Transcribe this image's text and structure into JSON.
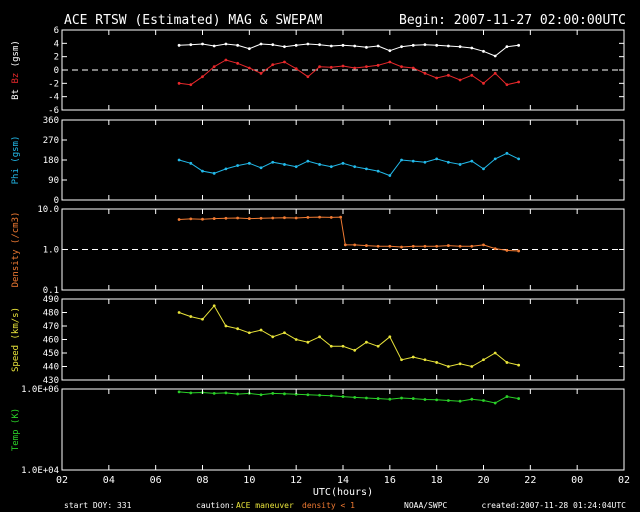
{
  "header": {
    "title": "ACE RTSW (Estimated) MAG & SWEPAM",
    "begin": "Begin: 2007-11-27 02:00:00UTC"
  },
  "footer": {
    "start_doy": "start DOY: 331",
    "caution_label": "caution:",
    "maneuver": "ACE maneuver",
    "density_note": "density < 1",
    "credit": "NOAA/SWPC",
    "created": "created:2007-11-28 01:24:04UTC"
  },
  "colors": {
    "background": "#000000",
    "frame": "#ffffff",
    "bt": "#ffffff",
    "bz": "#e8282b",
    "phi": "#22b8e8",
    "density": "#f07a32",
    "speed": "#e8e33a",
    "temp": "#2ad028",
    "maneuver": "#e8e33a"
  },
  "chart_data": [
    {
      "type": "scatter",
      "panel": "mag",
      "ylabel_parts": [
        "Bt",
        "Bz",
        "(gsm)"
      ],
      "xlabel": "UTC(hours)",
      "x_tick_labels": [
        "02",
        "04",
        "06",
        "08",
        "10",
        "12",
        "14",
        "16",
        "18",
        "20",
        "22",
        "00",
        "02"
      ],
      "ylim": [
        -6,
        6
      ],
      "y_tick_labels": [
        "6",
        "4",
        "2",
        "0",
        "-2",
        "-4",
        "-6"
      ],
      "zero_line": 0,
      "series": [
        {
          "name": "Bt",
          "color_key": "bt",
          "x": [
            7.0,
            7.5,
            8.0,
            8.5,
            9.0,
            9.5,
            10.0,
            10.5,
            11.0,
            11.5,
            12.0,
            12.5,
            13.0,
            13.5,
            14.0,
            14.5,
            15.0,
            15.5,
            16.0,
            16.5,
            17.0,
            17.5,
            18.0,
            18.5,
            19.0,
            19.5,
            20.0,
            20.5,
            21.0,
            21.5
          ],
          "values": [
            3.7,
            3.8,
            3.9,
            3.6,
            3.9,
            3.7,
            3.2,
            3.9,
            3.8,
            3.5,
            3.7,
            3.9,
            3.8,
            3.6,
            3.7,
            3.6,
            3.4,
            3.6,
            2.9,
            3.5,
            3.7,
            3.8,
            3.7,
            3.6,
            3.5,
            3.3,
            2.8,
            2.1,
            3.5,
            3.7
          ]
        },
        {
          "name": "Bz",
          "color_key": "bz",
          "x": [
            7.0,
            7.5,
            8.0,
            8.5,
            9.0,
            9.5,
            10.0,
            10.5,
            11.0,
            11.5,
            12.0,
            12.5,
            13.0,
            13.5,
            14.0,
            14.5,
            15.0,
            15.5,
            16.0,
            16.5,
            17.0,
            17.5,
            18.0,
            18.5,
            19.0,
            19.5,
            20.0,
            20.5,
            21.0,
            21.5
          ],
          "values": [
            -2.0,
            -2.2,
            -1.0,
            0.5,
            1.5,
            1.0,
            0.3,
            -0.5,
            0.8,
            1.2,
            0.2,
            -1.0,
            0.5,
            0.4,
            0.6,
            0.3,
            0.5,
            0.7,
            1.2,
            0.5,
            0.3,
            -0.5,
            -1.2,
            -0.8,
            -1.5,
            -0.8,
            -2.0,
            -0.5,
            -2.2,
            -1.8
          ]
        }
      ]
    },
    {
      "type": "scatter",
      "panel": "phi",
      "ylabel": "Phi (gsm)",
      "ylim": [
        0,
        360
      ],
      "y_tick_labels": [
        "360",
        "270",
        "180",
        "90",
        "0"
      ],
      "series": [
        {
          "name": "Phi",
          "color_key": "phi",
          "x": [
            7.0,
            7.5,
            8.0,
            8.5,
            9.0,
            9.5,
            10.0,
            10.5,
            11.0,
            11.5,
            12.0,
            12.5,
            13.0,
            13.5,
            14.0,
            14.5,
            15.0,
            15.5,
            16.0,
            16.5,
            17.0,
            17.5,
            18.0,
            18.5,
            19.0,
            19.5,
            20.0,
            20.5,
            21.0,
            21.5
          ],
          "values": [
            180,
            165,
            130,
            120,
            140,
            155,
            165,
            145,
            170,
            160,
            150,
            175,
            160,
            150,
            165,
            150,
            140,
            130,
            110,
            180,
            175,
            170,
            185,
            170,
            160,
            175,
            140,
            185,
            210,
            185
          ]
        }
      ]
    },
    {
      "type": "scatter",
      "panel": "density",
      "ylabel": "Density (/cm3)",
      "yscale": "log",
      "ylim": [
        0.1,
        10.0
      ],
      "y_tick_labels": [
        "10.0",
        "1.0",
        "0.1"
      ],
      "ref_line": 1.0,
      "series": [
        {
          "name": "Density",
          "color_key": "density",
          "x": [
            7.0,
            7.5,
            8.0,
            8.5,
            9.0,
            9.5,
            10.0,
            10.5,
            11.0,
            11.5,
            12.0,
            12.5,
            13.0,
            13.5,
            13.9,
            14.1,
            14.5,
            15.0,
            15.5,
            16.0,
            16.5,
            17.0,
            17.5,
            18.0,
            18.5,
            19.0,
            19.5,
            20.0,
            20.5,
            21.0,
            21.5
          ],
          "values": [
            5.5,
            5.7,
            5.6,
            5.8,
            5.9,
            6.0,
            5.8,
            5.9,
            6.0,
            6.1,
            6.0,
            6.2,
            6.3,
            6.2,
            6.3,
            1.3,
            1.3,
            1.25,
            1.2,
            1.2,
            1.15,
            1.2,
            1.2,
            1.2,
            1.25,
            1.2,
            1.2,
            1.3,
            1.05,
            0.95,
            0.92
          ]
        }
      ]
    },
    {
      "type": "scatter",
      "panel": "speed",
      "ylabel": "Speed (km/s)",
      "ylim": [
        430,
        490
      ],
      "y_tick_labels": [
        "490",
        "480",
        "470",
        "460",
        "450",
        "440",
        "430"
      ],
      "series": [
        {
          "name": "Speed",
          "color_key": "speed",
          "x": [
            7.0,
            7.5,
            8.0,
            8.5,
            9.0,
            9.5,
            10.0,
            10.5,
            11.0,
            11.5,
            12.0,
            12.5,
            13.0,
            13.5,
            14.0,
            14.5,
            15.0,
            15.5,
            16.0,
            16.5,
            17.0,
            17.5,
            18.0,
            18.5,
            19.0,
            19.5,
            20.0,
            20.5,
            21.0,
            21.5
          ],
          "values": [
            480,
            477,
            475,
            485,
            470,
            468,
            465,
            467,
            462,
            465,
            460,
            458,
            462,
            455,
            455,
            452,
            458,
            455,
            462,
            445,
            447,
            445,
            443,
            440,
            442,
            440,
            445,
            450,
            443,
            441
          ]
        }
      ]
    },
    {
      "type": "scatter",
      "panel": "temp",
      "ylabel": "Temp (K)",
      "yscale": "log",
      "ylim": [
        10000,
        1000000
      ],
      "y_tick_labels": [
        "1.0E+06",
        "1.0E+04"
      ],
      "series": [
        {
          "name": "Temp",
          "color_key": "temp",
          "x": [
            7.0,
            7.5,
            8.0,
            8.5,
            9.0,
            9.5,
            10.0,
            10.5,
            11.0,
            11.5,
            12.0,
            12.5,
            13.0,
            13.5,
            14.0,
            14.5,
            15.0,
            15.5,
            16.0,
            16.5,
            17.0,
            17.5,
            18.0,
            18.5,
            19.0,
            19.5,
            20.0,
            20.5,
            21.0,
            21.5
          ],
          "values": [
            850000,
            800000,
            820000,
            780000,
            800000,
            750000,
            780000,
            720000,
            780000,
            760000,
            740000,
            720000,
            700000,
            680000,
            650000,
            620000,
            600000,
            580000,
            560000,
            600000,
            580000,
            550000,
            540000,
            520000,
            500000,
            560000,
            520000,
            450000,
            650000,
            580000
          ]
        }
      ]
    }
  ]
}
